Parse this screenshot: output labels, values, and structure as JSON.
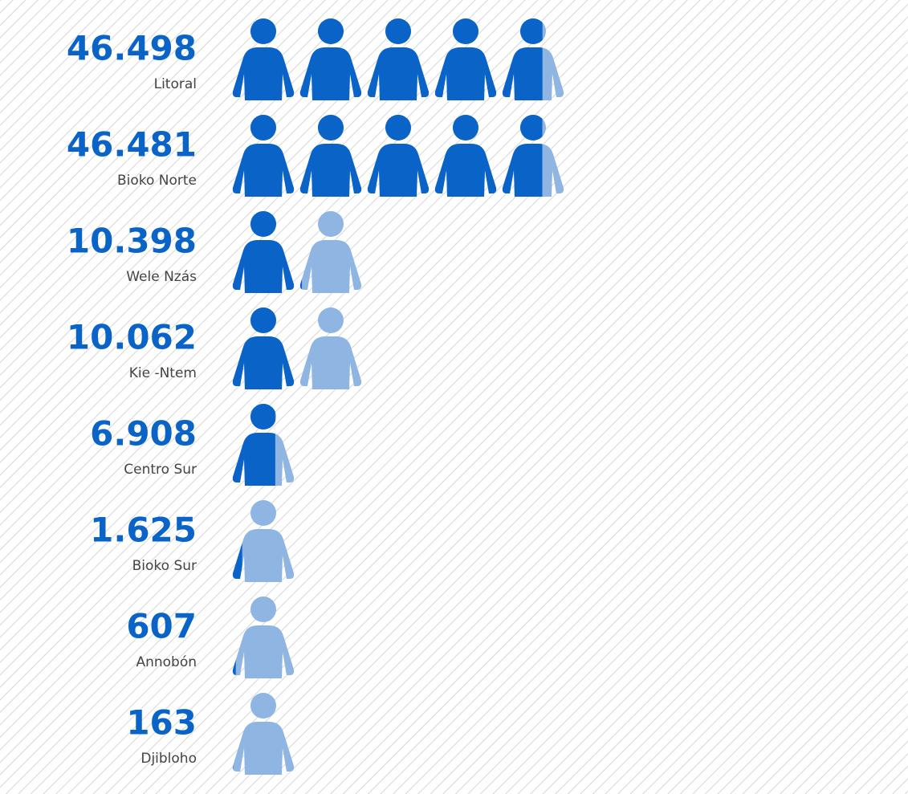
{
  "chart_data": {
    "type": "pictograph",
    "categories": [
      "Litoral",
      "Bioko Norte",
      "Wele Nzás",
      "Kie -Ntem",
      "Centro Sur",
      "Bioko Sur",
      "Annobón",
      "Djibloho"
    ],
    "values": [
      46498,
      46481,
      10398,
      10062,
      6908,
      1625,
      607,
      163
    ],
    "value_labels": [
      "46.498",
      "46.481",
      "10.398",
      "10.062",
      "6.908",
      "1.625",
      "607",
      "163"
    ],
    "color": "#0a64c8",
    "empty_color": "#8fb5e3",
    "xlim": [
      0,
      50000
    ]
  }
}
